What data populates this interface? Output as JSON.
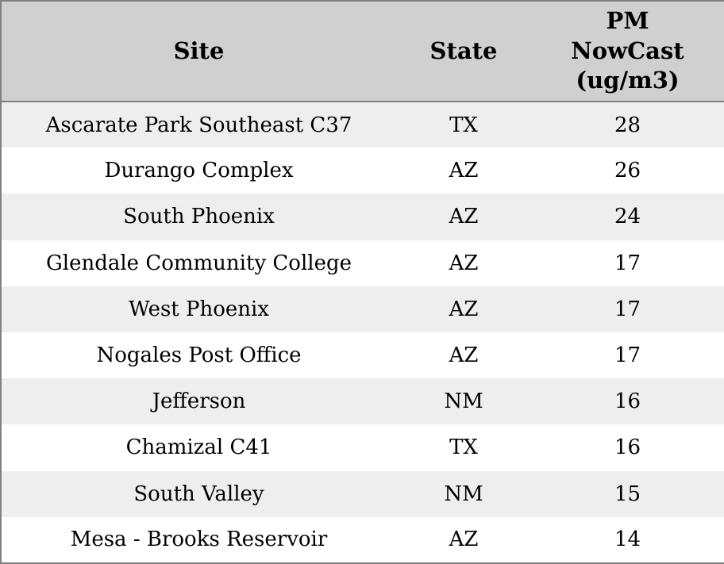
{
  "chart_data": {
    "type": "table",
    "columns": [
      "Site",
      "State",
      "PM NowCast (ug/m3)"
    ],
    "rows": [
      [
        "Ascarate Park Southeast C37",
        "TX",
        28
      ],
      [
        "Durango Complex",
        "AZ",
        26
      ],
      [
        "South Phoenix",
        "AZ",
        24
      ],
      [
        "Glendale Community College",
        "AZ",
        17
      ],
      [
        "West Phoenix",
        "AZ",
        17
      ],
      [
        "Nogales Post Office",
        "AZ",
        17
      ],
      [
        "Jefferson",
        "NM",
        16
      ],
      [
        "Chamizal C41",
        "TX",
        16
      ],
      [
        "South Valley",
        "NM",
        15
      ],
      [
        "Mesa - Brooks Reservoir",
        "AZ",
        14
      ]
    ],
    "colors": {
      "header_bg": "#d0d0d0",
      "row_odd_bg": "#eeeeee",
      "row_even_bg": "#ffffff",
      "border": "#808080",
      "text": "#000000"
    }
  }
}
